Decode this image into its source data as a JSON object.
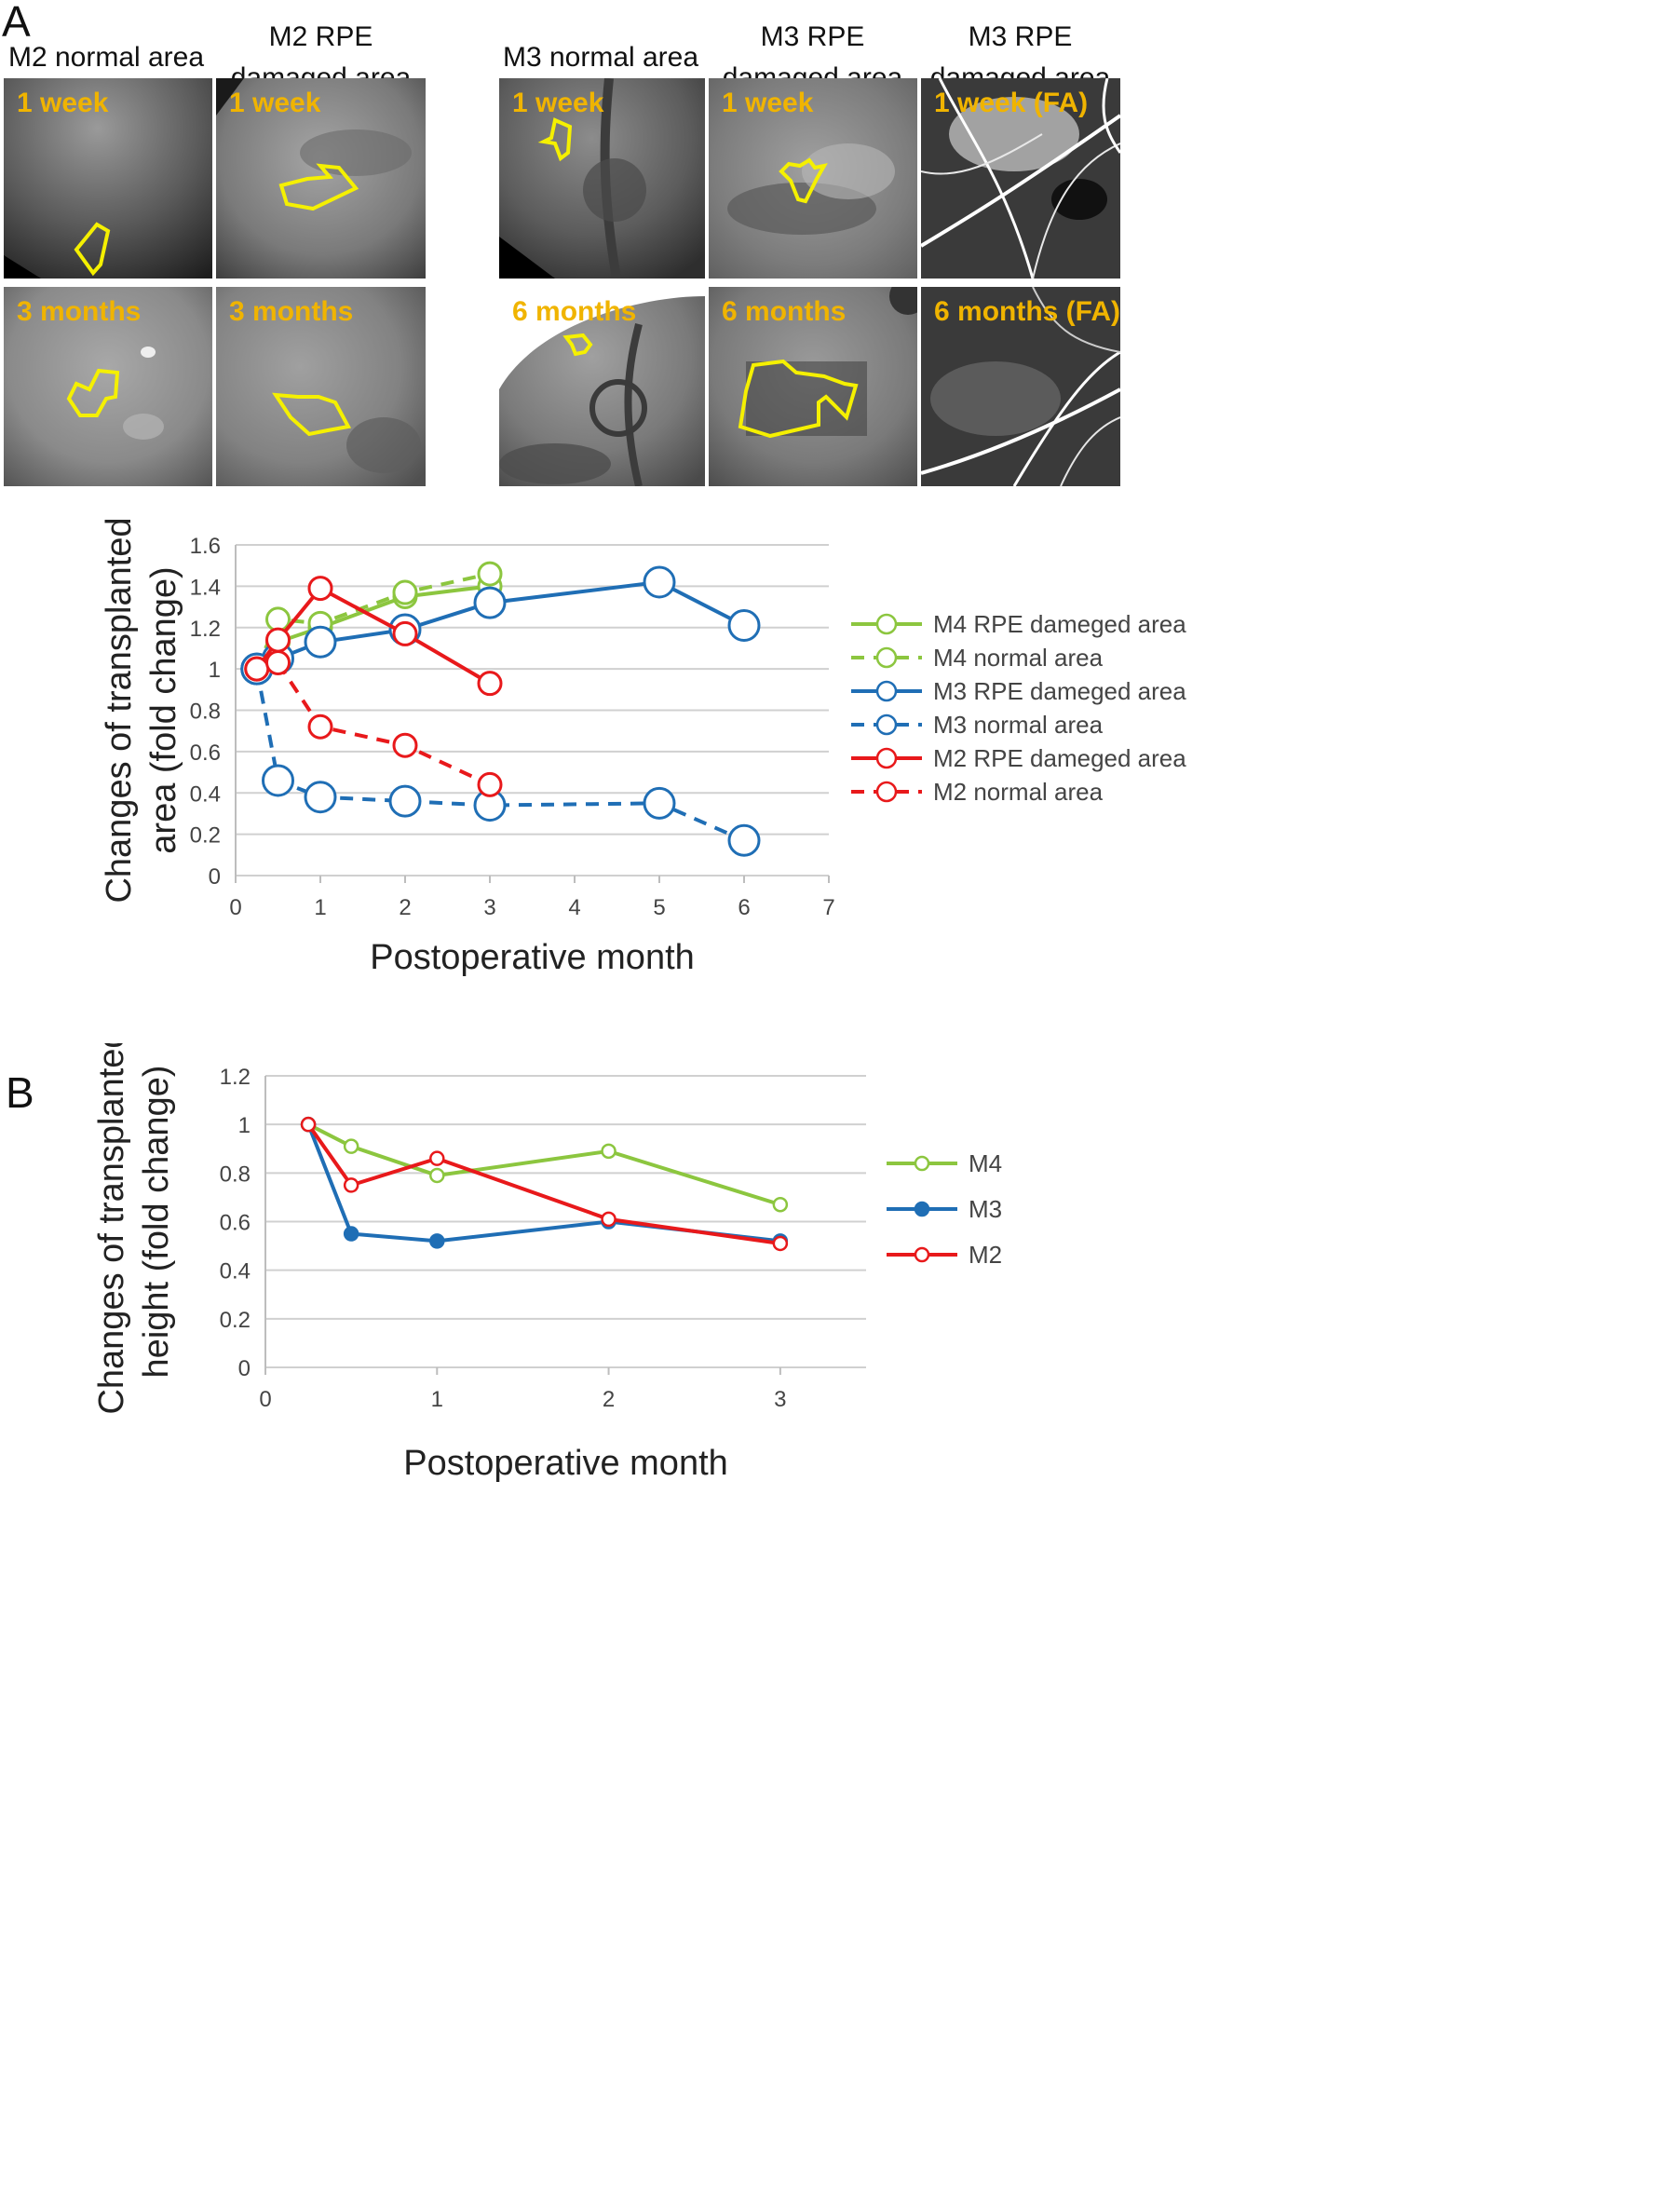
{
  "panel_a": {
    "letter": "A",
    "columns": [
      {
        "title_line1": "M2 normal area",
        "title_line2": ""
      },
      {
        "title_line1": "M2 RPE",
        "title_line2": "damaged  area"
      },
      {
        "title_line1": "M3 normal area",
        "title_line2": ""
      },
      {
        "title_line1": "M3 RPE",
        "title_line2": "damaged  area"
      },
      {
        "title_line1": "M3 RPE",
        "title_line2": "damaged  area"
      }
    ],
    "images": [
      {
        "label": "1 week"
      },
      {
        "label": "1 week"
      },
      {
        "label": "1 week"
      },
      {
        "label": "1 week"
      },
      {
        "label": "1 week (FA)"
      },
      {
        "label": "3 months"
      },
      {
        "label": "3 months"
      },
      {
        "label": "6 months"
      },
      {
        "label": "6 months"
      },
      {
        "label": "6 months (FA)"
      }
    ],
    "colors": {
      "outline": "#f5f000",
      "label": "#f0b400"
    }
  },
  "panel_b": {
    "letter": "B"
  },
  "chart_data": [
    {
      "type": "line",
      "title": "",
      "xlabel": "Postoperative month",
      "ylabel_line1": "Changes of transplanted",
      "ylabel_line2": "area (fold change)",
      "xlim": [
        0,
        7
      ],
      "ylim": [
        0,
        1.6
      ],
      "xticks": [
        0,
        1,
        2,
        3,
        4,
        5,
        6,
        7
      ],
      "yticks": [
        0,
        0.2,
        0.4,
        0.6,
        0.8,
        1,
        1.2,
        1.4,
        1.6
      ],
      "ytick_labels": [
        "0",
        "0.2",
        "0.4",
        "0.6",
        "0.8",
        "1",
        "1.2",
        "1.4",
        "1.6"
      ],
      "grid": true,
      "legend_position": "right",
      "series": [
        {
          "name": "M4 RPE dameged area",
          "color": "#8cc63f",
          "dashed": false,
          "marker_size": "small",
          "x": [
            0.25,
            0.5,
            1,
            2,
            3
          ],
          "y": [
            1.0,
            1.13,
            1.2,
            1.35,
            1.4
          ]
        },
        {
          "name": "M4 normal area",
          "color": "#8cc63f",
          "dashed": true,
          "marker_size": "small",
          "x": [
            0.25,
            0.5,
            1,
            2,
            3
          ],
          "y": [
            1.0,
            1.24,
            1.22,
            1.37,
            1.46
          ]
        },
        {
          "name": "M3 RPE dameged area",
          "color": "#1f6eb5",
          "dashed": false,
          "marker_size": "large",
          "x": [
            0.25,
            0.5,
            1,
            2,
            3,
            5,
            6
          ],
          "y": [
            1.0,
            1.05,
            1.13,
            1.19,
            1.32,
            1.42,
            1.21
          ]
        },
        {
          "name": "M3 normal area",
          "color": "#1f6eb5",
          "dashed": true,
          "marker_size": "large",
          "x": [
            0.25,
            0.5,
            1,
            2,
            3,
            5,
            6
          ],
          "y": [
            1.0,
            0.46,
            0.38,
            0.36,
            0.34,
            0.35,
            0.17
          ]
        },
        {
          "name": "M2 RPE dameged area",
          "color": "#e8191b",
          "dashed": false,
          "marker_size": "small",
          "x": [
            0.25,
            0.5,
            1,
            2,
            3
          ],
          "y": [
            1.0,
            1.14,
            1.39,
            1.17,
            0.93
          ]
        },
        {
          "name": "M2 normal area",
          "color": "#e8191b",
          "dashed": true,
          "marker_size": "small",
          "x": [
            0.25,
            0.5,
            1,
            2,
            3
          ],
          "y": [
            1.0,
            1.03,
            0.72,
            0.63,
            0.44
          ]
        }
      ]
    },
    {
      "type": "line",
      "title": "",
      "xlabel": "Postoperative month",
      "ylabel_line1": "Changes of transplanted",
      "ylabel_line2": "height (fold change)",
      "xlim": [
        0,
        3.5
      ],
      "ylim": [
        0,
        1.2
      ],
      "xticks": [
        0,
        1,
        2,
        3
      ],
      "yticks": [
        0,
        0.2,
        0.4,
        0.6,
        0.8,
        1,
        1.2
      ],
      "ytick_labels": [
        "0",
        "0.2",
        "0.4",
        "0.6",
        "0.8",
        "1",
        "1.2"
      ],
      "grid": true,
      "legend_position": "right",
      "series": [
        {
          "name": "M4",
          "color": "#8cc63f",
          "filled": false,
          "x": [
            0.25,
            0.5,
            1,
            2,
            3
          ],
          "y": [
            1.0,
            0.91,
            0.79,
            0.89,
            0.67
          ]
        },
        {
          "name": "M3",
          "color": "#1f6eb5",
          "filled": true,
          "x": [
            0.25,
            0.5,
            1,
            2,
            3
          ],
          "y": [
            1.0,
            0.55,
            0.52,
            0.6,
            0.52
          ]
        },
        {
          "name": "M2",
          "color": "#e8191b",
          "filled": false,
          "x": [
            0.25,
            0.5,
            1,
            2,
            3
          ],
          "y": [
            1.0,
            0.75,
            0.86,
            0.61,
            0.51
          ]
        }
      ]
    }
  ]
}
